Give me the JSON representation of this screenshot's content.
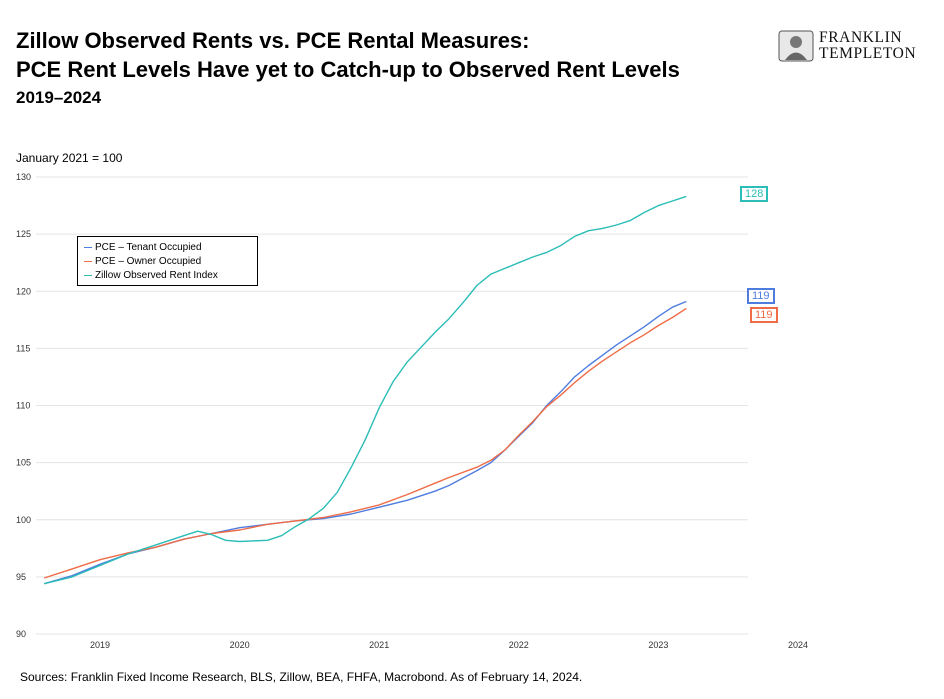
{
  "header": {
    "title_line1": "Zillow Observed Rents vs. PCE Rental Measures:",
    "title_line2": "PCE Rent Levels Have yet to Catch-up to Observed Rent Levels",
    "subtitle": "2019–2024",
    "unit_note": "January 2021 = 100"
  },
  "logo": {
    "line1": "FRANKLIN",
    "line2": "TEMPLETON"
  },
  "footer": {
    "source": "Sources: Franklin Fixed Income Research, BLS, Zillow, BEA, FHFA, Macrobond. As of February 14, 2024."
  },
  "chart_data": {
    "type": "line",
    "title": "",
    "xlabel": "",
    "ylabel": "January 2021 = 100",
    "xlim": [
      2018.6,
      2024.0
    ],
    "ylim": [
      90,
      130
    ],
    "yticks": [
      90,
      95,
      100,
      105,
      110,
      115,
      120,
      125,
      130
    ],
    "xticks": [
      "2019",
      "2020",
      "2021",
      "2022",
      "2023",
      "2024"
    ],
    "grid": true,
    "legend_position": "upper-left",
    "series": [
      {
        "name": "PCE – Tenant Occupied",
        "color": "#4f7ddf",
        "end_label": "119",
        "points": [
          [
            2018.6,
            94.4
          ],
          [
            2018.8,
            95.1
          ],
          [
            2019.0,
            96.1
          ],
          [
            2019.2,
            97.0
          ],
          [
            2019.4,
            97.6
          ],
          [
            2019.6,
            98.3
          ],
          [
            2019.8,
            98.8
          ],
          [
            2020.0,
            99.3
          ],
          [
            2020.2,
            99.6
          ],
          [
            2020.4,
            99.9
          ],
          [
            2020.6,
            100.1
          ],
          [
            2020.8,
            100.5
          ],
          [
            2021.0,
            101.1
          ],
          [
            2021.2,
            101.7
          ],
          [
            2021.4,
            102.5
          ],
          [
            2021.5,
            103.0
          ],
          [
            2021.7,
            104.3
          ],
          [
            2021.8,
            105.0
          ],
          [
            2021.9,
            106.1
          ],
          [
            2022.0,
            107.3
          ],
          [
            2022.1,
            108.5
          ],
          [
            2022.2,
            110.0
          ],
          [
            2022.3,
            111.2
          ],
          [
            2022.4,
            112.5
          ],
          [
            2022.5,
            113.5
          ],
          [
            2022.6,
            114.4
          ],
          [
            2022.7,
            115.3
          ],
          [
            2022.8,
            116.1
          ],
          [
            2022.9,
            116.9
          ],
          [
            2023.0,
            117.8
          ],
          [
            2023.1,
            118.6
          ],
          [
            2023.2,
            119.1
          ]
        ]
      },
      {
        "name": "PCE – Owner Occupied",
        "color": "#ef6c47",
        "end_label": "119",
        "points": [
          [
            2018.6,
            94.9
          ],
          [
            2018.8,
            95.7
          ],
          [
            2019.0,
            96.5
          ],
          [
            2019.2,
            97.1
          ],
          [
            2019.4,
            97.6
          ],
          [
            2019.6,
            98.3
          ],
          [
            2019.8,
            98.8
          ],
          [
            2020.0,
            99.1
          ],
          [
            2020.2,
            99.6
          ],
          [
            2020.4,
            99.9
          ],
          [
            2020.6,
            100.2
          ],
          [
            2020.8,
            100.7
          ],
          [
            2021.0,
            101.3
          ],
          [
            2021.2,
            102.2
          ],
          [
            2021.4,
            103.2
          ],
          [
            2021.5,
            103.7
          ],
          [
            2021.7,
            104.6
          ],
          [
            2021.8,
            105.2
          ],
          [
            2021.9,
            106.1
          ],
          [
            2022.0,
            107.4
          ],
          [
            2022.1,
            108.6
          ],
          [
            2022.2,
            109.9
          ],
          [
            2022.3,
            110.9
          ],
          [
            2022.4,
            112.0
          ],
          [
            2022.5,
            113.0
          ],
          [
            2022.6,
            113.9
          ],
          [
            2022.7,
            114.7
          ],
          [
            2022.8,
            115.5
          ],
          [
            2022.9,
            116.2
          ],
          [
            2023.0,
            117.0
          ],
          [
            2023.1,
            117.7
          ],
          [
            2023.2,
            118.5
          ]
        ]
      },
      {
        "name": "Zillow Observed Rent Index",
        "color": "#2bbdb7",
        "end_label": "128",
        "points": [
          [
            2018.6,
            94.4
          ],
          [
            2018.8,
            95.0
          ],
          [
            2019.0,
            96.0
          ],
          [
            2019.2,
            97.0
          ],
          [
            2019.4,
            97.8
          ],
          [
            2019.6,
            98.6
          ],
          [
            2019.7,
            99.0
          ],
          [
            2019.8,
            98.7
          ],
          [
            2019.9,
            98.2
          ],
          [
            2020.0,
            98.1
          ],
          [
            2020.2,
            98.2
          ],
          [
            2020.3,
            98.6
          ],
          [
            2020.4,
            99.4
          ],
          [
            2020.5,
            100.1
          ],
          [
            2020.6,
            101.0
          ],
          [
            2020.7,
            102.4
          ],
          [
            2020.8,
            104.6
          ],
          [
            2020.9,
            107.0
          ],
          [
            2021.0,
            109.8
          ],
          [
            2021.1,
            112.1
          ],
          [
            2021.2,
            113.8
          ],
          [
            2021.3,
            115.1
          ],
          [
            2021.4,
            116.4
          ],
          [
            2021.5,
            117.6
          ],
          [
            2021.6,
            119.0
          ],
          [
            2021.7,
            120.5
          ],
          [
            2021.8,
            121.5
          ],
          [
            2021.9,
            122.0
          ],
          [
            2022.0,
            122.5
          ],
          [
            2022.1,
            123.0
          ],
          [
            2022.2,
            123.4
          ],
          [
            2022.3,
            124.0
          ],
          [
            2022.4,
            124.8
          ],
          [
            2022.5,
            125.3
          ],
          [
            2022.6,
            125.5
          ],
          [
            2022.7,
            125.8
          ],
          [
            2022.8,
            126.2
          ],
          [
            2022.9,
            126.9
          ],
          [
            2023.0,
            127.5
          ],
          [
            2023.1,
            127.9
          ],
          [
            2023.2,
            128.3
          ]
        ]
      }
    ]
  }
}
